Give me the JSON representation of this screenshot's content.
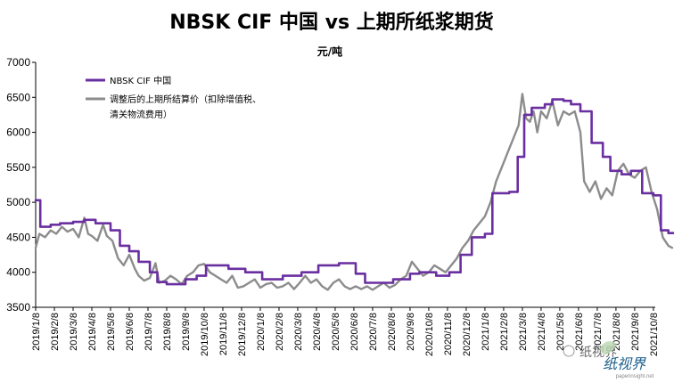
{
  "chart_data": {
    "type": "line",
    "title": "NBSK CIF 中国 vs 上期所纸浆期货",
    "subtitle": "元/吨",
    "xlabel": "",
    "ylabel": "",
    "ylim": [
      3500,
      7000
    ],
    "yticks": [
      3500,
      4000,
      4500,
      5000,
      5500,
      6000,
      6500,
      7000
    ],
    "xticks": [
      "2019/1/8",
      "2019/2/8",
      "2019/3/8",
      "2019/4/8",
      "2019/5/8",
      "2019/6/8",
      "2019/7/8",
      "2019/8/8",
      "2019/9/8",
      "2019/10/8",
      "2019/11/8",
      "2019/12/8",
      "2020/1/8",
      "2020/2/8",
      "2020/3/8",
      "2020/4/8",
      "2020/5/8",
      "2020/6/8",
      "2020/7/8",
      "2020/8/8",
      "2020/9/8",
      "2020/10/8",
      "2020/11/8",
      "2020/12/8",
      "2021/1/8",
      "2021/2/8",
      "2021/3/8",
      "2021/4/8",
      "2021/5/8",
      "2021/6/8",
      "2021/7/8",
      "2021/8/8",
      "2021/9/8",
      "2021/10/8"
    ],
    "grid": false,
    "legend_position": "top-left",
    "series": [
      {
        "name": "NBSK CIF 中国",
        "color": "#6a2fa0",
        "step": true,
        "points": [
          [
            0,
            5030
          ],
          [
            0.25,
            5030
          ],
          [
            0.25,
            4650
          ],
          [
            0.8,
            4650
          ],
          [
            0.8,
            4680
          ],
          [
            1.3,
            4680
          ],
          [
            1.3,
            4700
          ],
          [
            2.0,
            4700
          ],
          [
            2.0,
            4720
          ],
          [
            2.6,
            4720
          ],
          [
            2.6,
            4750
          ],
          [
            3.2,
            4750
          ],
          [
            3.2,
            4700
          ],
          [
            4.0,
            4700
          ],
          [
            4.0,
            4600
          ],
          [
            4.5,
            4600
          ],
          [
            4.5,
            4380
          ],
          [
            5.0,
            4380
          ],
          [
            5.0,
            4300
          ],
          [
            5.5,
            4300
          ],
          [
            5.5,
            4150
          ],
          [
            6.1,
            4150
          ],
          [
            6.1,
            4000
          ],
          [
            6.5,
            4000
          ],
          [
            6.5,
            3860
          ],
          [
            7.0,
            3860
          ],
          [
            7.0,
            3830
          ],
          [
            8.0,
            3830
          ],
          [
            8.0,
            3900
          ],
          [
            8.6,
            3900
          ],
          [
            8.6,
            3950
          ],
          [
            9.1,
            3950
          ],
          [
            9.1,
            4100
          ],
          [
            10.3,
            4100
          ],
          [
            10.3,
            4050
          ],
          [
            11.2,
            4050
          ],
          [
            11.2,
            4000
          ],
          [
            12.1,
            4000
          ],
          [
            12.1,
            3900
          ],
          [
            13.2,
            3900
          ],
          [
            13.2,
            3950
          ],
          [
            14.2,
            3950
          ],
          [
            14.2,
            4000
          ],
          [
            15.1,
            4000
          ],
          [
            15.1,
            4100
          ],
          [
            16.2,
            4100
          ],
          [
            16.2,
            4130
          ],
          [
            17.1,
            4130
          ],
          [
            17.1,
            3980
          ],
          [
            17.6,
            3980
          ],
          [
            17.6,
            3850
          ],
          [
            19.1,
            3850
          ],
          [
            19.1,
            3900
          ],
          [
            20.0,
            3900
          ],
          [
            20.0,
            3980
          ],
          [
            20.5,
            3980
          ],
          [
            20.5,
            4000
          ],
          [
            21.4,
            4000
          ],
          [
            21.4,
            3950
          ],
          [
            22.1,
            3950
          ],
          [
            22.1,
            4000
          ],
          [
            22.7,
            4000
          ],
          [
            22.7,
            4250
          ],
          [
            23.3,
            4250
          ],
          [
            23.3,
            4500
          ],
          [
            24.0,
            4500
          ],
          [
            24.0,
            4550
          ],
          [
            24.4,
            4550
          ],
          [
            24.4,
            5130
          ],
          [
            25.3,
            5130
          ],
          [
            25.3,
            5150
          ],
          [
            25.75,
            5150
          ],
          [
            25.75,
            5650
          ],
          [
            26.1,
            5650
          ],
          [
            26.1,
            6250
          ],
          [
            26.5,
            6250
          ],
          [
            26.5,
            6350
          ],
          [
            27.2,
            6350
          ],
          [
            27.2,
            6400
          ],
          [
            27.6,
            6400
          ],
          [
            27.6,
            6470
          ],
          [
            28.2,
            6470
          ],
          [
            28.2,
            6450
          ],
          [
            28.6,
            6450
          ],
          [
            28.6,
            6400
          ],
          [
            29.1,
            6400
          ],
          [
            29.1,
            6300
          ],
          [
            29.7,
            6300
          ],
          [
            29.7,
            5850
          ],
          [
            30.3,
            5850
          ],
          [
            30.3,
            5650
          ],
          [
            30.7,
            5650
          ],
          [
            30.7,
            5450
          ],
          [
            31.3,
            5450
          ],
          [
            31.3,
            5400
          ],
          [
            31.8,
            5400
          ],
          [
            31.8,
            5450
          ],
          [
            32.4,
            5450
          ],
          [
            32.4,
            5130
          ],
          [
            33.0,
            5130
          ],
          [
            33.0,
            5100
          ],
          [
            33.4,
            5100
          ],
          [
            33.4,
            4600
          ],
          [
            33.8,
            4600
          ],
          [
            33.8,
            4560
          ],
          [
            34.1,
            4560
          ]
        ]
      },
      {
        "name": "调整后的上期所结算价（扣除增值税、清关物流费用）",
        "color": "#8c8c8c",
        "step": false,
        "points": [
          [
            0,
            4350
          ],
          [
            0.2,
            4550
          ],
          [
            0.5,
            4500
          ],
          [
            0.8,
            4600
          ],
          [
            1.1,
            4550
          ],
          [
            1.4,
            4650
          ],
          [
            1.7,
            4580
          ],
          [
            2.0,
            4620
          ],
          [
            2.3,
            4500
          ],
          [
            2.6,
            4780
          ],
          [
            2.8,
            4550
          ],
          [
            3.0,
            4520
          ],
          [
            3.3,
            4450
          ],
          [
            3.6,
            4680
          ],
          [
            3.8,
            4520
          ],
          [
            4.1,
            4450
          ],
          [
            4.4,
            4200
          ],
          [
            4.7,
            4100
          ],
          [
            5.0,
            4250
          ],
          [
            5.3,
            4050
          ],
          [
            5.5,
            3950
          ],
          [
            5.8,
            3880
          ],
          [
            6.1,
            3920
          ],
          [
            6.4,
            4130
          ],
          [
            6.6,
            3850
          ],
          [
            6.9,
            3880
          ],
          [
            7.2,
            3950
          ],
          [
            7.5,
            3900
          ],
          [
            7.8,
            3830
          ],
          [
            8.1,
            3950
          ],
          [
            8.4,
            4000
          ],
          [
            8.7,
            4100
          ],
          [
            9.0,
            4120
          ],
          [
            9.3,
            4000
          ],
          [
            9.6,
            3950
          ],
          [
            9.9,
            3900
          ],
          [
            10.2,
            3850
          ],
          [
            10.5,
            3950
          ],
          [
            10.8,
            3780
          ],
          [
            11.1,
            3800
          ],
          [
            11.4,
            3850
          ],
          [
            11.7,
            3900
          ],
          [
            12.0,
            3780
          ],
          [
            12.3,
            3830
          ],
          [
            12.6,
            3850
          ],
          [
            12.9,
            3780
          ],
          [
            13.2,
            3800
          ],
          [
            13.5,
            3850
          ],
          [
            13.8,
            3760
          ],
          [
            14.1,
            3850
          ],
          [
            14.4,
            3950
          ],
          [
            14.7,
            3850
          ],
          [
            15.0,
            3900
          ],
          [
            15.3,
            3800
          ],
          [
            15.6,
            3750
          ],
          [
            15.9,
            3850
          ],
          [
            16.2,
            3900
          ],
          [
            16.5,
            3800
          ],
          [
            16.8,
            3760
          ],
          [
            17.1,
            3800
          ],
          [
            17.4,
            3760
          ],
          [
            17.7,
            3800
          ],
          [
            18.0,
            3750
          ],
          [
            18.3,
            3800
          ],
          [
            18.6,
            3850
          ],
          [
            18.9,
            3780
          ],
          [
            19.2,
            3820
          ],
          [
            19.5,
            3900
          ],
          [
            19.8,
            3950
          ],
          [
            20.1,
            4150
          ],
          [
            20.4,
            4050
          ],
          [
            20.7,
            3950
          ],
          [
            21.0,
            4000
          ],
          [
            21.3,
            4100
          ],
          [
            21.6,
            4050
          ],
          [
            21.9,
            4000
          ],
          [
            22.2,
            4100
          ],
          [
            22.5,
            4200
          ],
          [
            22.8,
            4350
          ],
          [
            23.1,
            4450
          ],
          [
            23.4,
            4600
          ],
          [
            23.7,
            4700
          ],
          [
            24.0,
            4800
          ],
          [
            24.3,
            5000
          ],
          [
            24.6,
            5300
          ],
          [
            24.9,
            5500
          ],
          [
            25.2,
            5700
          ],
          [
            25.5,
            5900
          ],
          [
            25.8,
            6100
          ],
          [
            26.0,
            6550
          ],
          [
            26.2,
            6200
          ],
          [
            26.4,
            6150
          ],
          [
            26.6,
            6300
          ],
          [
            26.8,
            6000
          ],
          [
            27.0,
            6300
          ],
          [
            27.3,
            6200
          ],
          [
            27.6,
            6450
          ],
          [
            27.9,
            6100
          ],
          [
            28.2,
            6300
          ],
          [
            28.5,
            6250
          ],
          [
            28.8,
            6300
          ],
          [
            29.1,
            6000
          ],
          [
            29.3,
            5300
          ],
          [
            29.6,
            5150
          ],
          [
            29.9,
            5300
          ],
          [
            30.2,
            5050
          ],
          [
            30.5,
            5200
          ],
          [
            30.8,
            5100
          ],
          [
            31.1,
            5450
          ],
          [
            31.4,
            5550
          ],
          [
            31.7,
            5400
          ],
          [
            32.0,
            5350
          ],
          [
            32.3,
            5450
          ],
          [
            32.6,
            5500
          ],
          [
            32.9,
            5150
          ],
          [
            33.2,
            4900
          ],
          [
            33.5,
            4500
          ],
          [
            33.8,
            4380
          ],
          [
            34.0,
            4350
          ]
        ]
      }
    ]
  },
  "watermark": {
    "text": "纸视界",
    "url_text": "paperinsight.net",
    "wechat_text": "纸视界"
  }
}
